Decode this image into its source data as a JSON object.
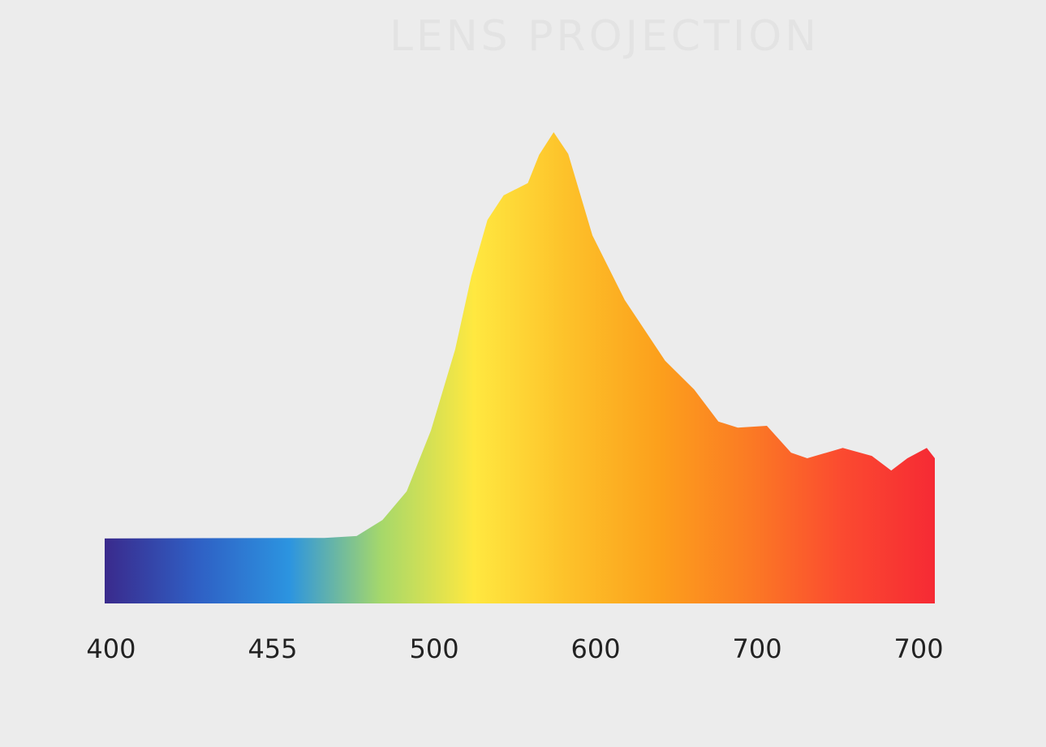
{
  "chart_data": {
    "type": "area",
    "title": "LENS PROJECTION",
    "x": [
      -0.04,
      1.32,
      1.52,
      1.68,
      1.83,
      1.98,
      2.13,
      2.23,
      2.33,
      2.43,
      2.58,
      2.65,
      2.74,
      2.83,
      2.98,
      3.18,
      3.43,
      3.61,
      3.76,
      3.88,
      4.06,
      4.21,
      4.31,
      4.53,
      4.71,
      4.83,
      4.93,
      5.05,
      5.1
    ],
    "values": [
      13.8,
      13.9,
      14.3,
      17.7,
      23.8,
      36.7,
      53.9,
      69.4,
      81.4,
      86.6,
      89.2,
      95.2,
      100,
      95.4,
      78.1,
      64.4,
      51.5,
      45.4,
      38.6,
      37.3,
      37.7,
      32.0,
      30.8,
      33.0,
      31.3,
      28.2,
      30.8,
      33.0,
      30.8
    ],
    "xlim": [
      -0.04,
      5.1
    ],
    "ylim": [
      0,
      100
    ],
    "xticks": [
      {
        "value": 0,
        "label": "400"
      },
      {
        "value": 1,
        "label": "455"
      },
      {
        "value": 2,
        "label": "500"
      },
      {
        "value": 3,
        "label": "600"
      },
      {
        "value": 4,
        "label": "700"
      },
      {
        "value": 5,
        "label": "700"
      }
    ],
    "gradient": [
      "#3a2a8c",
      "#2f5fc4",
      "#2c94e0",
      "#a6d86a",
      "#ffe840",
      "#fdc22a",
      "#fca01c",
      "#fb7a24",
      "#fb4a30",
      "#f62a34"
    ]
  }
}
